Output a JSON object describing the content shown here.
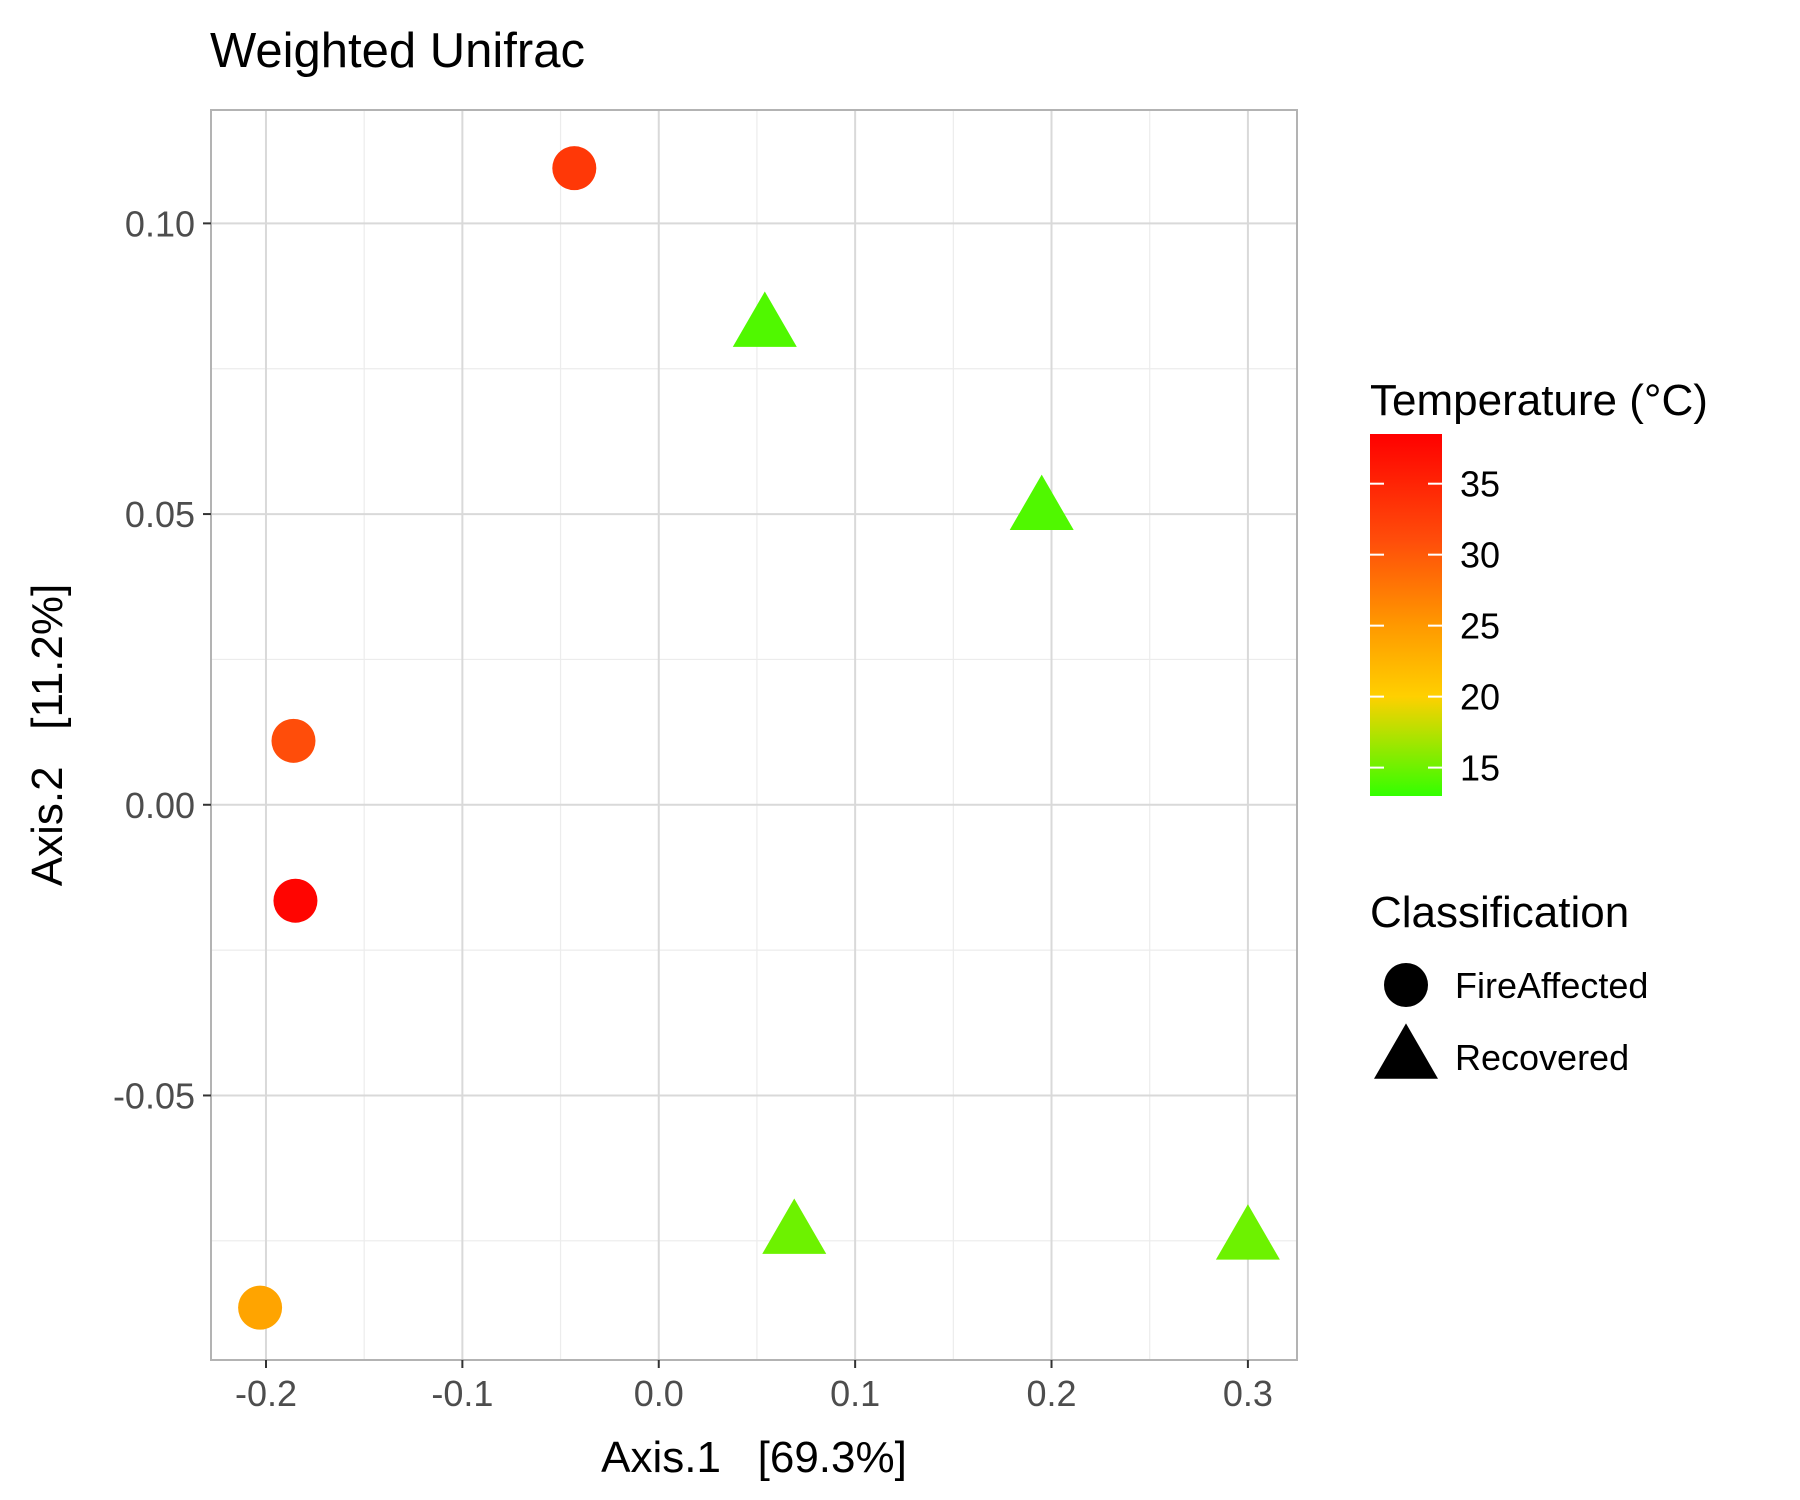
{
  "chart_data": {
    "type": "scatter",
    "title": "Weighted Unifrac",
    "xlabel": "Axis.1   [69.3%]",
    "ylabel": "Axis.2   [11.2%]",
    "xlim": [
      -0.228,
      0.325
    ],
    "ylim": [
      -0.0955,
      0.1195
    ],
    "x_ticks": [
      {
        "value": -0.2,
        "label": "-0.2"
      },
      {
        "value": -0.1,
        "label": "-0.1"
      },
      {
        "value": 0.0,
        "label": "0.0"
      },
      {
        "value": 0.1,
        "label": "0.1"
      },
      {
        "value": 0.2,
        "label": "0.2"
      },
      {
        "value": 0.3,
        "label": "0.3"
      }
    ],
    "y_ticks": [
      {
        "value": -0.05,
        "label": "-0.05"
      },
      {
        "value": 0.0,
        "label": "0.00"
      },
      {
        "value": 0.05,
        "label": "0.05"
      },
      {
        "value": 0.1,
        "label": "0.10"
      }
    ],
    "grid": true,
    "points": [
      {
        "x": -0.043,
        "y": 0.1095,
        "temperature": 33,
        "classification": "FireAffected"
      },
      {
        "x": -0.186,
        "y": 0.011,
        "temperature": 31,
        "classification": "FireAffected"
      },
      {
        "x": -0.185,
        "y": -0.0165,
        "temperature": 38,
        "classification": "FireAffected"
      },
      {
        "x": -0.203,
        "y": -0.0865,
        "temperature": 24,
        "classification": "FireAffected"
      },
      {
        "x": 0.054,
        "y": 0.0825,
        "temperature": 14,
        "classification": "Recovered"
      },
      {
        "x": 0.195,
        "y": 0.051,
        "temperature": 14,
        "classification": "Recovered"
      },
      {
        "x": 0.069,
        "y": -0.0735,
        "temperature": 15,
        "classification": "Recovered"
      },
      {
        "x": 0.3,
        "y": -0.0745,
        "temperature": 15,
        "classification": "Recovered"
      }
    ],
    "color_legend": {
      "title": "Temperature (°C)",
      "min": 13,
      "max": 38.5,
      "ticks": [
        {
          "value": 15,
          "label": "15"
        },
        {
          "value": 20,
          "label": "20"
        },
        {
          "value": 25,
          "label": "25"
        },
        {
          "value": 30,
          "label": "30"
        },
        {
          "value": 35,
          "label": "35"
        }
      ],
      "colors": [
        {
          "value": 13,
          "color": "#33ff00"
        },
        {
          "value": 20,
          "color": "#ffd000"
        },
        {
          "value": 25,
          "color": "#ff9900"
        },
        {
          "value": 31,
          "color": "#ff4d0a"
        },
        {
          "value": 38.5,
          "color": "#ff0000"
        }
      ]
    },
    "shape_legend": {
      "title": "Classification",
      "items": [
        {
          "label": "FireAffected",
          "shape": "circle"
        },
        {
          "label": "Recovered",
          "shape": "triangle"
        }
      ]
    },
    "legend_position": "right"
  }
}
